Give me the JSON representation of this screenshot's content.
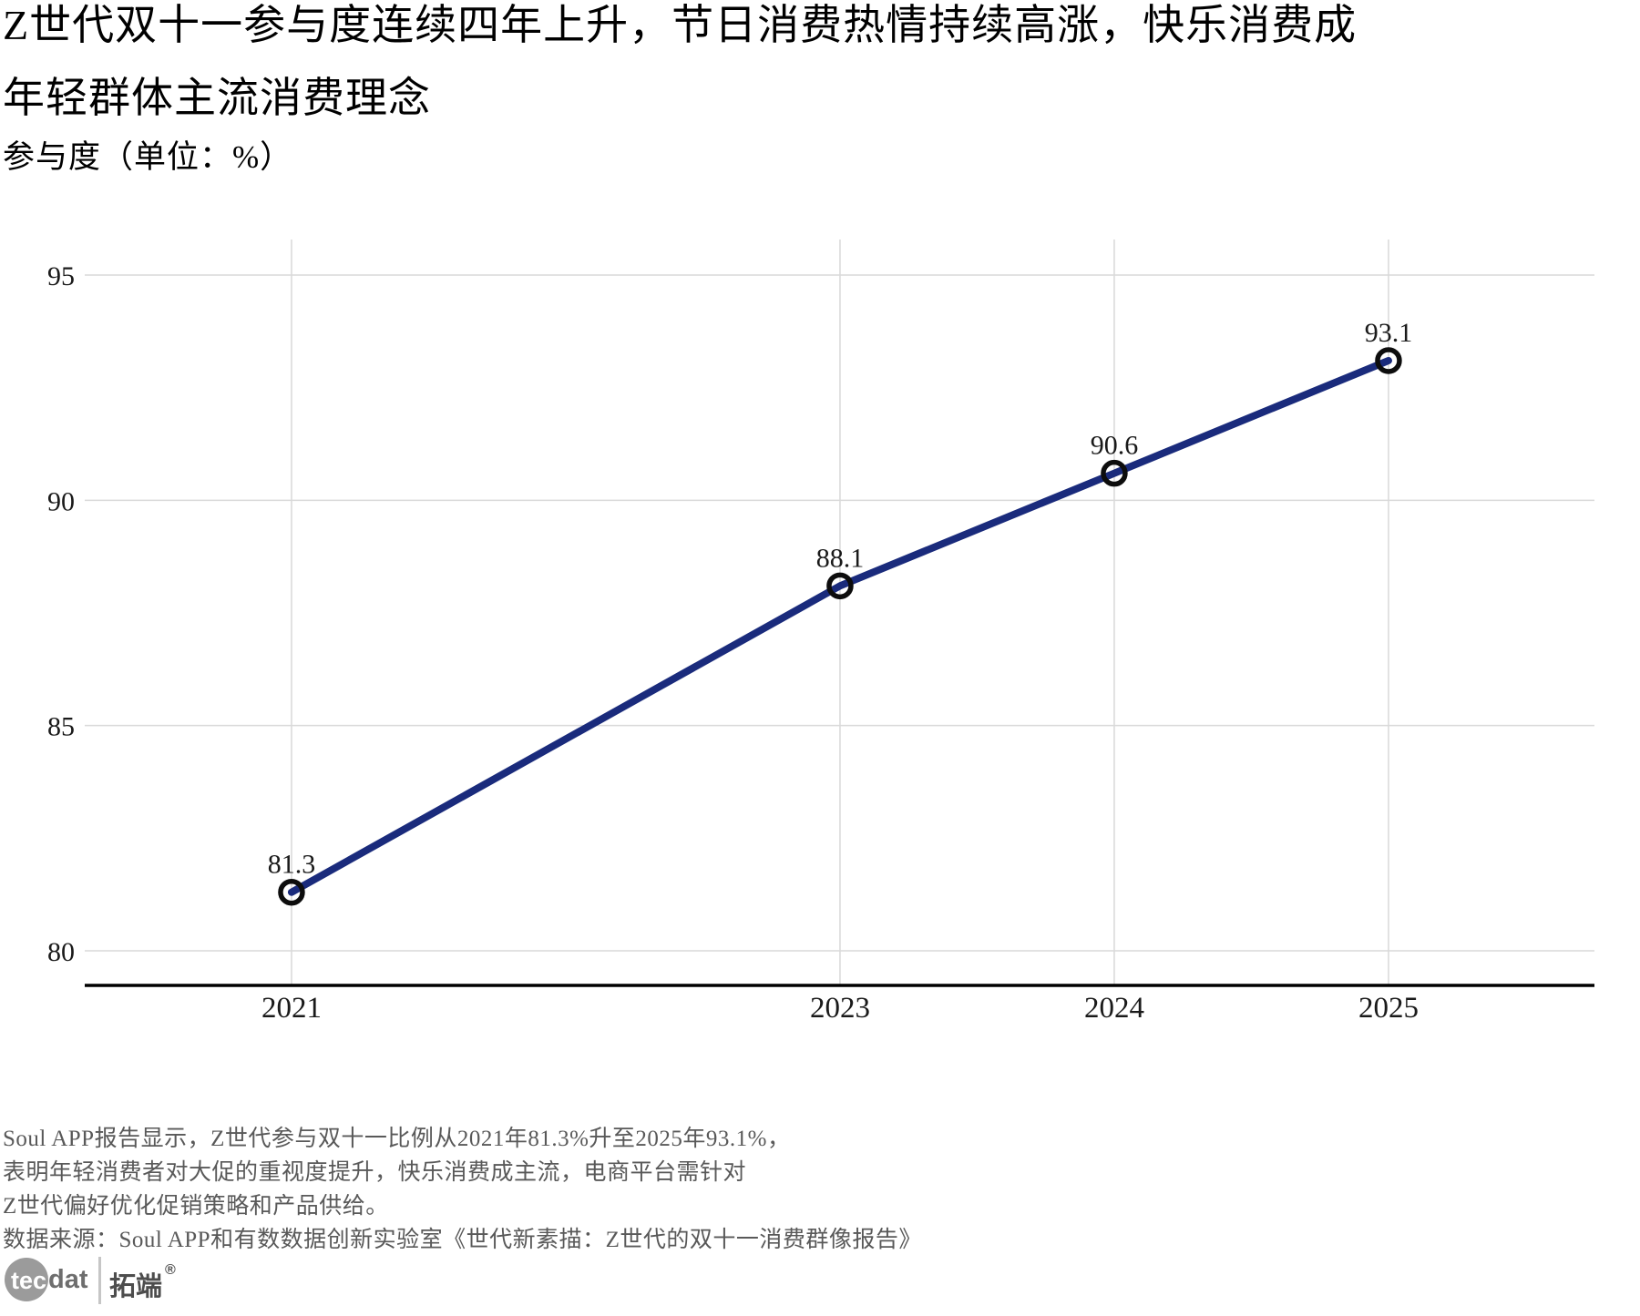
{
  "header": {
    "title_line1": "Z世代双十一参与度连续四年上升，节日消费热情持续高涨，快乐消费成",
    "title_line2": "年轻群体主流消费理念",
    "subtitle": "参与度（单位：%）"
  },
  "chart_data": {
    "type": "line",
    "title": "Z世代双十一参与度连续四年上升",
    "ylabel": "参与度（单位：%）",
    "xlabel": "",
    "grid": true,
    "series": [
      {
        "name": "参与度",
        "points": [
          {
            "x": 2021,
            "y": 81.3,
            "label": "81.3"
          },
          {
            "x": 2023,
            "y": 88.1,
            "label": "88.1"
          },
          {
            "x": 2024,
            "y": 90.6,
            "label": "90.6"
          },
          {
            "x": 2025,
            "y": 93.1,
            "label": "93.1"
          }
        ]
      }
    ],
    "xticks": [
      {
        "x": 2021,
        "label": "2021"
      },
      {
        "x": 2023,
        "label": "2023"
      },
      {
        "x": 2024,
        "label": "2024"
      },
      {
        "x": 2025,
        "label": "2025"
      }
    ],
    "yticks": [
      {
        "y": 80,
        "label": "80"
      },
      {
        "y": 85,
        "label": "85"
      },
      {
        "y": 90,
        "label": "90"
      },
      {
        "y": 95,
        "label": "95"
      }
    ],
    "xlim": [
      2020.246,
      2025.751
    ],
    "ylim": [
      79.232,
      95.788
    ],
    "colors": {
      "line": "#1a2b7c",
      "marker_stroke": "#0d0d0d",
      "grid": "#d9d9d9",
      "axis": "#000000",
      "tick_label": "#1a1a1a",
      "data_label": "#1a1a1a"
    }
  },
  "notes": {
    "lines": [
      "Soul APP报告显示，Z世代参与双十一比例从2021年81.3%升至2025年93.1%，",
      "表明年轻消费者对大促的重视度提升，快乐消费成主流，电商平台需针对",
      "Z世代偏好优化促销策略和产品供给。"
    ],
    "source": "数据来源：Soul APP和有数数据创新实验室《世代新素描：Z世代的双十一消费群像报告》"
  },
  "logo": {
    "tec": "tec",
    "dat": "dat",
    "cn": "拓端",
    "reg": "®"
  }
}
